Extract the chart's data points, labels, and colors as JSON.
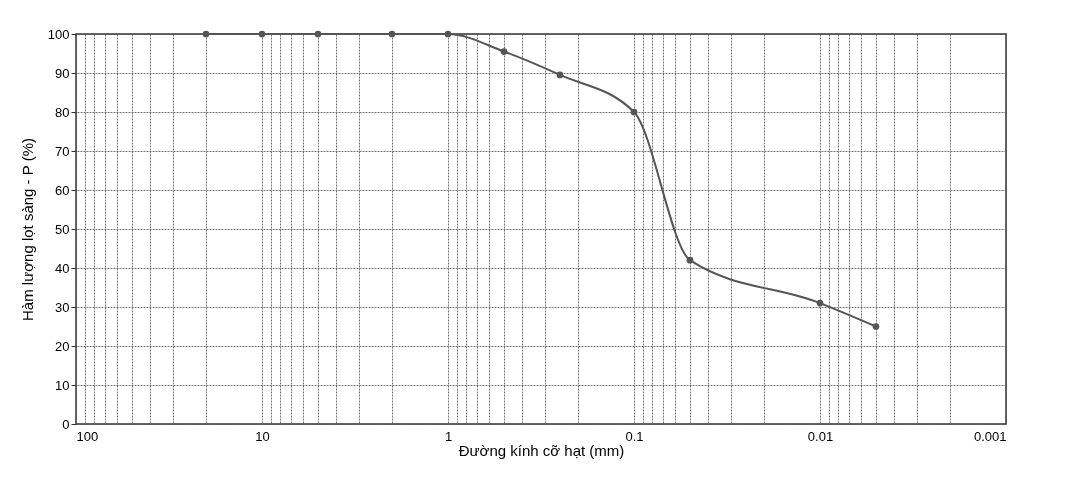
{
  "chart_data": {
    "type": "line",
    "xlabel": "Đường kính cỡ hạt (mm)",
    "ylabel": "Hàm lượng lọt sàng - P (%)",
    "log": "x",
    "grid": true,
    "marker": "circle",
    "line_style": "solid",
    "xlim": [
      100,
      0.001
    ],
    "ylim": [
      0,
      100
    ],
    "xticks": [
      100,
      {
        "value": 90,
        "label": null
      },
      {
        "value": 80,
        "label": null
      },
      {
        "value": 70,
        "label": null
      },
      {
        "value": 60,
        "label": null
      },
      {
        "value": 50,
        "label": null
      },
      {
        "value": 40,
        "label": null
      },
      {
        "value": 30,
        "label": null
      },
      {
        "value": 20,
        "label": null
      },
      10,
      {
        "value": 9,
        "label": null
      },
      {
        "value": 8,
        "label": null
      },
      {
        "value": 7,
        "label": null
      },
      {
        "value": 6,
        "label": null
      },
      {
        "value": 5,
        "label": null
      },
      {
        "value": 4,
        "label": null
      },
      {
        "value": 3,
        "label": null
      },
      {
        "value": 2,
        "label": null
      },
      1,
      {
        "value": 0.9,
        "label": null
      },
      {
        "value": 0.8,
        "label": null
      },
      {
        "value": 0.7,
        "label": null
      },
      {
        "value": 0.6,
        "label": null
      },
      {
        "value": 0.5,
        "label": null
      },
      {
        "value": 0.4,
        "label": null
      },
      {
        "value": 0.3,
        "label": null
      },
      {
        "value": 0.2,
        "label": null
      },
      0.1,
      {
        "value": 0.09,
        "label": null
      },
      {
        "value": 0.08,
        "label": null
      },
      {
        "value": 0.07,
        "label": null
      },
      {
        "value": 0.06,
        "label": null
      },
      {
        "value": 0.05,
        "label": null
      },
      {
        "value": 0.04,
        "label": null
      },
      {
        "value": 0.03,
        "label": null
      },
      {
        "value": 0.02,
        "label": null
      },
      0.01,
      {
        "value": 0.009,
        "label": null
      },
      {
        "value": 0.008,
        "label": null
      },
      {
        "value": 0.007,
        "label": null
      },
      {
        "value": 0.006,
        "label": null
      },
      {
        "value": 0.005,
        "label": null
      },
      {
        "value": 0.004,
        "label": null
      },
      {
        "value": 0.003,
        "label": null
      },
      {
        "value": 0.002,
        "label": null
      },
      0.001
    ],
    "yticks": [
      0,
      10,
      20,
      30,
      40,
      50,
      60,
      70,
      80,
      90,
      100
    ],
    "x": [
      20,
      10,
      5,
      2,
      1,
      0.5,
      0.25,
      0.1,
      0.05,
      0.01,
      0.005
    ],
    "series": [
      {
        "color": "#555555",
        "values": [
          100,
          100,
          100,
          100,
          100,
          95.5,
          89.5,
          80,
          42,
          31,
          25
        ]
      }
    ]
  }
}
